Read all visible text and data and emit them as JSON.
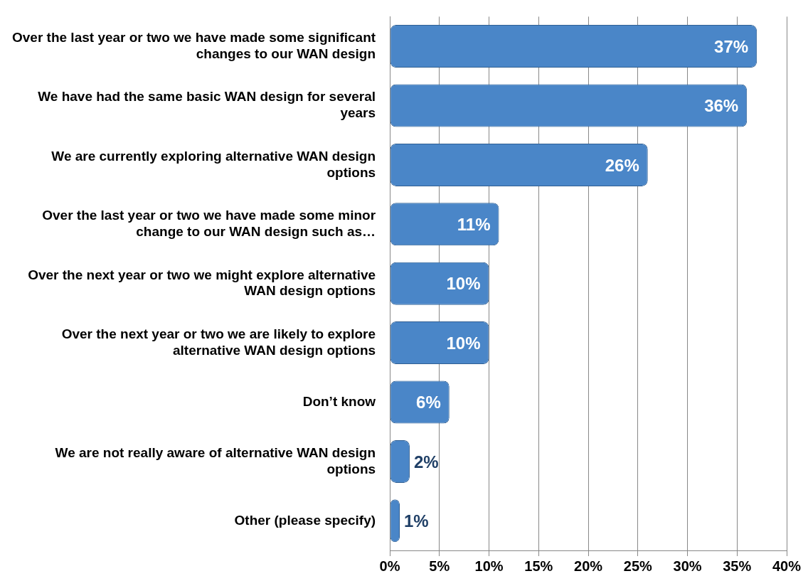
{
  "chart_data": {
    "type": "bar",
    "orientation": "horizontal",
    "categories": [
      "Over the last year or two we have made some significant changes to our WAN design",
      "We have had the same basic WAN design for several years",
      "We are currently exploring alternative WAN design options",
      "Over the last year or two we have made some minor change to our WAN design such as…",
      "Over the next year or two we might explore alternative WAN design options",
      "Over the next year or two we are likely to explore alternative WAN design options",
      "Don’t know",
      "We are not really aware of alternative WAN design options",
      "Other (please specify)"
    ],
    "values": [
      37,
      36,
      26,
      11,
      10,
      10,
      6,
      2,
      1
    ],
    "color": "#4a86c8",
    "xlim": [
      0,
      40
    ],
    "xticks": [
      {
        "value": 0,
        "label": "0%"
      },
      {
        "value": 5,
        "label": "5%"
      },
      {
        "value": 10,
        "label": "10%"
      },
      {
        "value": 15,
        "label": "15%"
      },
      {
        "value": 20,
        "label": "20%"
      },
      {
        "value": 25,
        "label": "25%"
      },
      {
        "value": 30,
        "label": "30%"
      },
      {
        "value": 35,
        "label": "35%"
      },
      {
        "value": 40,
        "label": "40%"
      }
    ],
    "value_labels": [
      "37%",
      "36%",
      "26%",
      "11%",
      "10%",
      "10%",
      "6%",
      "2%",
      "1%"
    ],
    "grid": "x"
  }
}
